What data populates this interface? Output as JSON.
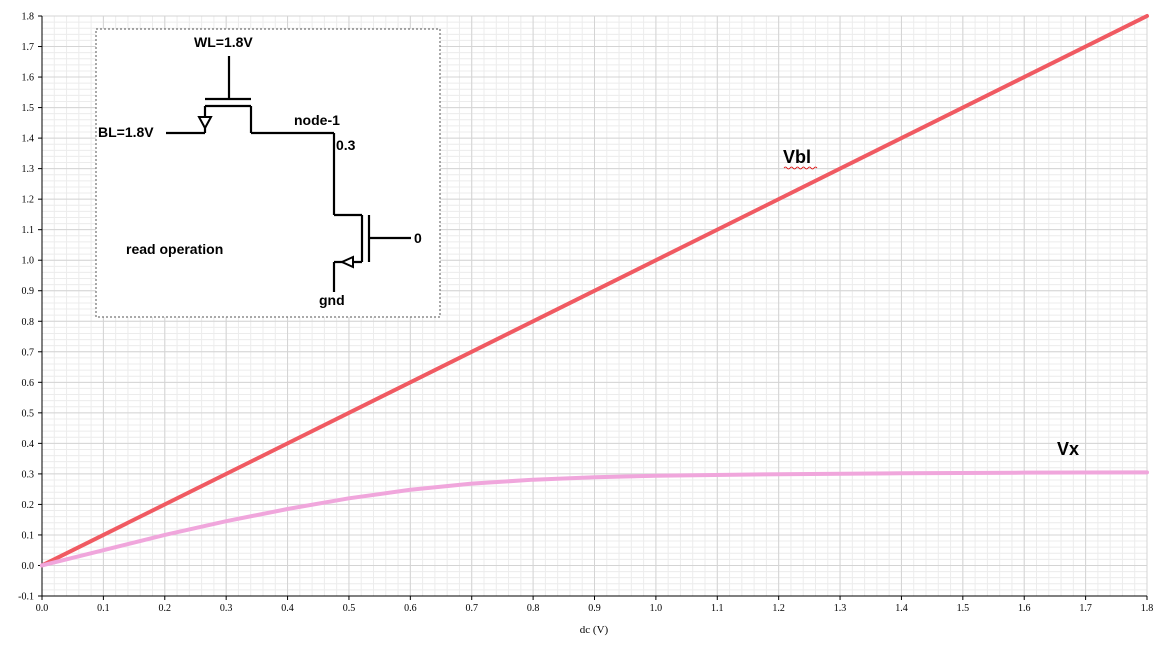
{
  "chart_data": {
    "type": "line",
    "title": "",
    "xlabel": "dc (V)",
    "ylabel": "",
    "xlim": [
      0.0,
      1.8
    ],
    "ylim": [
      -0.1,
      1.8
    ],
    "x_ticks": [
      "0.0",
      "0.1",
      "0.2",
      "0.3",
      "0.4",
      "0.5",
      "0.6",
      "0.7",
      "0.8",
      "0.9",
      "1.0",
      "1.1",
      "1.2",
      "1.3",
      "1.4",
      "1.5",
      "1.6",
      "1.7",
      "1.8"
    ],
    "y_ticks": [
      "-0.1",
      "0.0",
      "0.1",
      "0.2",
      "0.3",
      "0.4",
      "0.5",
      "0.6",
      "0.7",
      "0.8",
      "0.9",
      "1.0",
      "1.1",
      "1.2",
      "1.3",
      "1.4",
      "1.5",
      "1.6",
      "1.7",
      "1.8"
    ],
    "grid": true,
    "series": [
      {
        "name": "Vbl",
        "color": "#f05a62",
        "x": [
          0.0,
          1.8
        ],
        "y": [
          0.0,
          1.8
        ]
      },
      {
        "name": "Vx",
        "color": "#f0a6dc",
        "x": [
          0.0,
          0.1,
          0.2,
          0.3,
          0.4,
          0.5,
          0.6,
          0.7,
          0.8,
          0.9,
          1.0,
          1.2,
          1.4,
          1.6,
          1.8
        ],
        "y": [
          0.0,
          0.05,
          0.1,
          0.145,
          0.185,
          0.22,
          0.248,
          0.268,
          0.281,
          0.289,
          0.294,
          0.299,
          0.302,
          0.304,
          0.305
        ]
      }
    ],
    "annotations": [
      "Vbl",
      "Vx"
    ]
  },
  "inset": {
    "wl_label": "WL=1.8V",
    "bl_label": "BL=1.8V",
    "node_label": "node-1",
    "node_value": "0.3",
    "gate_value": "0",
    "gnd_label": "gnd",
    "caption": "read operation"
  }
}
